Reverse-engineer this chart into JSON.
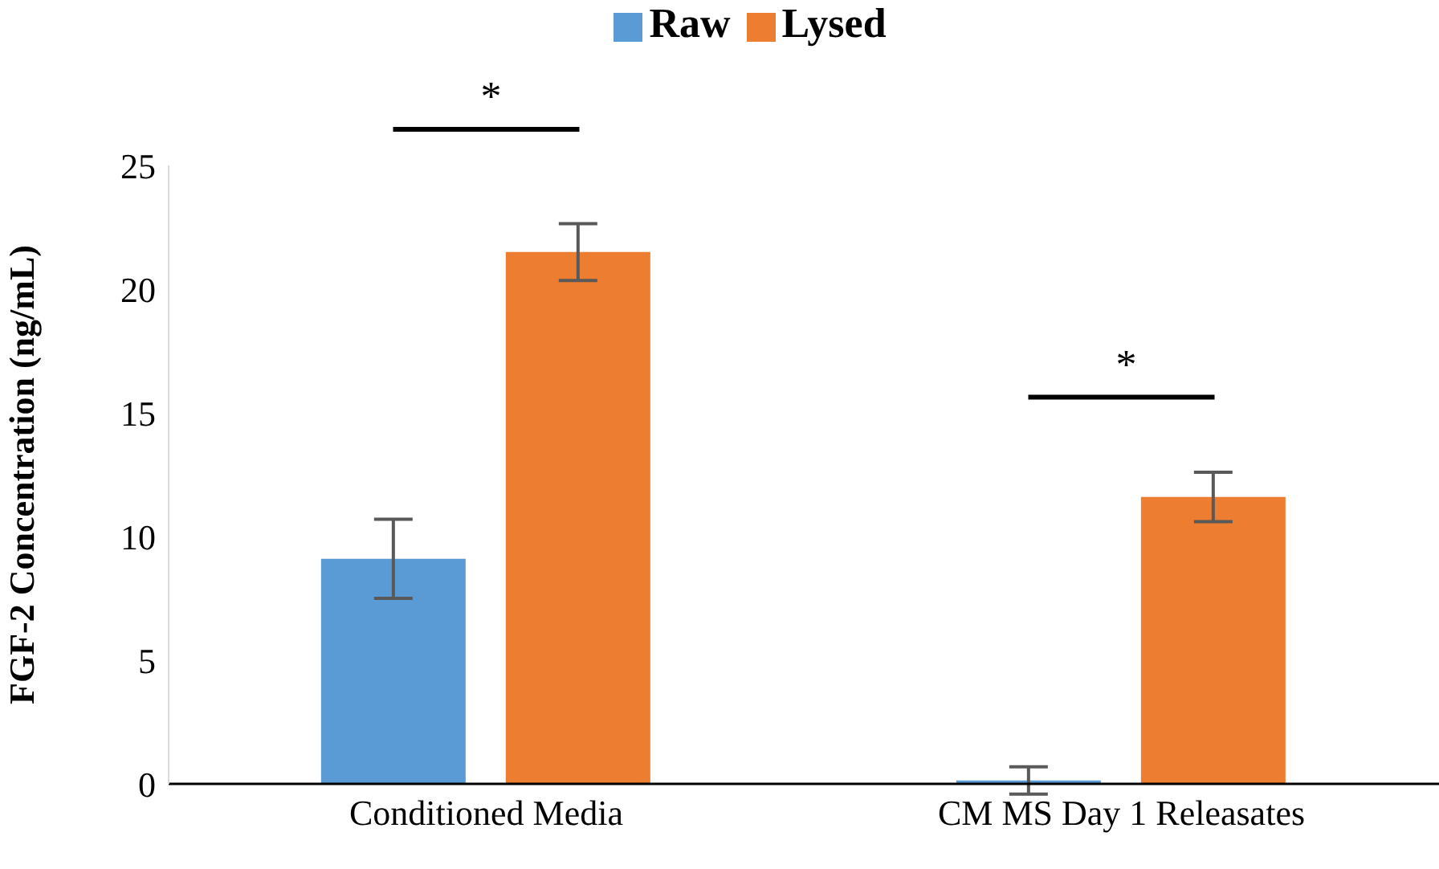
{
  "chart_data": {
    "type": "bar",
    "ylabel": "FGF-2 Concentration (ng/mL)",
    "categories": [
      "Conditioned Media",
      "CM MS Day 1 Releasates"
    ],
    "series": [
      {
        "name": "Raw",
        "color": "#5b9bd5",
        "values": [
          9.1,
          0.14
        ],
        "errors": [
          1.6,
          0.55
        ]
      },
      {
        "name": "Lysed",
        "color": "#ed7d31",
        "values": [
          21.5,
          11.6
        ],
        "errors": [
          1.15,
          1.0
        ]
      }
    ],
    "ylim": [
      0,
      25
    ],
    "yticks": [
      0,
      5,
      10,
      15,
      20,
      25
    ],
    "legend": "top",
    "annotations": [
      "*",
      "*"
    ]
  }
}
